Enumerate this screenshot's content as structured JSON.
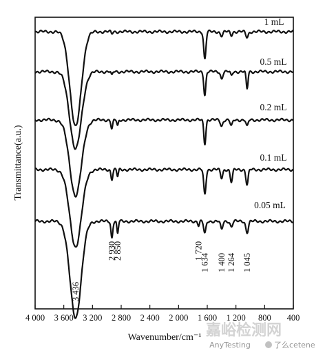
{
  "chart_data": {
    "type": "line",
    "title": "",
    "xlabel": "Wavenumber/cm⁻¹",
    "ylabel": "Transmittance(a.u.)",
    "xlim": [
      4000,
      400
    ],
    "x_reversed": true,
    "grid": false,
    "xticks": [
      4000,
      3600,
      3200,
      2800,
      2400,
      2000,
      1600,
      1200,
      800,
      400
    ],
    "xtick_labels": [
      "4 000",
      "3 600",
      "3 200",
      "2 800",
      "2 400",
      "2 000",
      "1 600",
      "1 200",
      "800",
      "400"
    ],
    "series": [
      {
        "name": "1 mL",
        "baseline": 0,
        "dips": [
          [
            3436,
            138,
            110
          ],
          [
            1634,
            40,
            22
          ],
          [
            1400,
            6,
            25
          ],
          [
            1264,
            5,
            20
          ],
          [
            1045,
            8,
            25
          ],
          [
            2930,
            3,
            15
          ]
        ]
      },
      {
        "name": "0.5 mL",
        "baseline": 0,
        "dips": [
          [
            3436,
            112,
            115
          ],
          [
            1634,
            34,
            20
          ],
          [
            1400,
            10,
            22
          ],
          [
            1264,
            6,
            18
          ],
          [
            1045,
            25,
            18
          ],
          [
            2930,
            6,
            15
          ]
        ]
      },
      {
        "name": "0.2 mL",
        "baseline": 0,
        "dips": [
          [
            3436,
            110,
            115
          ],
          [
            2930,
            13,
            18
          ],
          [
            2850,
            9,
            15
          ],
          [
            1634,
            34,
            20
          ],
          [
            1400,
            9,
            22
          ],
          [
            1264,
            9,
            22
          ],
          [
            1045,
            10,
            20
          ]
        ]
      },
      {
        "name": "0.1 mL",
        "baseline": 0,
        "dips": [
          [
            3436,
            112,
            115
          ],
          [
            2930,
            14,
            18
          ],
          [
            2850,
            10,
            15
          ],
          [
            1634,
            36,
            22
          ],
          [
            1400,
            12,
            22
          ],
          [
            1264,
            18,
            22
          ],
          [
            1045,
            22,
            22
          ]
        ]
      },
      {
        "name": "0.05 mL",
        "baseline": 0,
        "dips": [
          [
            3436,
            140,
            110
          ],
          [
            2930,
            24,
            18
          ],
          [
            2850,
            18,
            15
          ],
          [
            1720,
            6,
            15
          ],
          [
            1634,
            18,
            22
          ],
          [
            1400,
            12,
            22
          ],
          [
            1264,
            8,
            22
          ],
          [
            1045,
            16,
            25
          ]
        ]
      }
    ],
    "peak_annotations": [
      "3 436",
      "2 930",
      "2 850",
      "1 720",
      "1 634",
      "1 400",
      "1 264",
      "1 045"
    ],
    "peak_positions": [
      3436,
      2930,
      2850,
      1720,
      1634,
      1400,
      1264,
      1045
    ]
  },
  "watermark": {
    "main": "嘉峪检测网",
    "sub": "AnyTesting",
    "tag": "了么cetene"
  }
}
